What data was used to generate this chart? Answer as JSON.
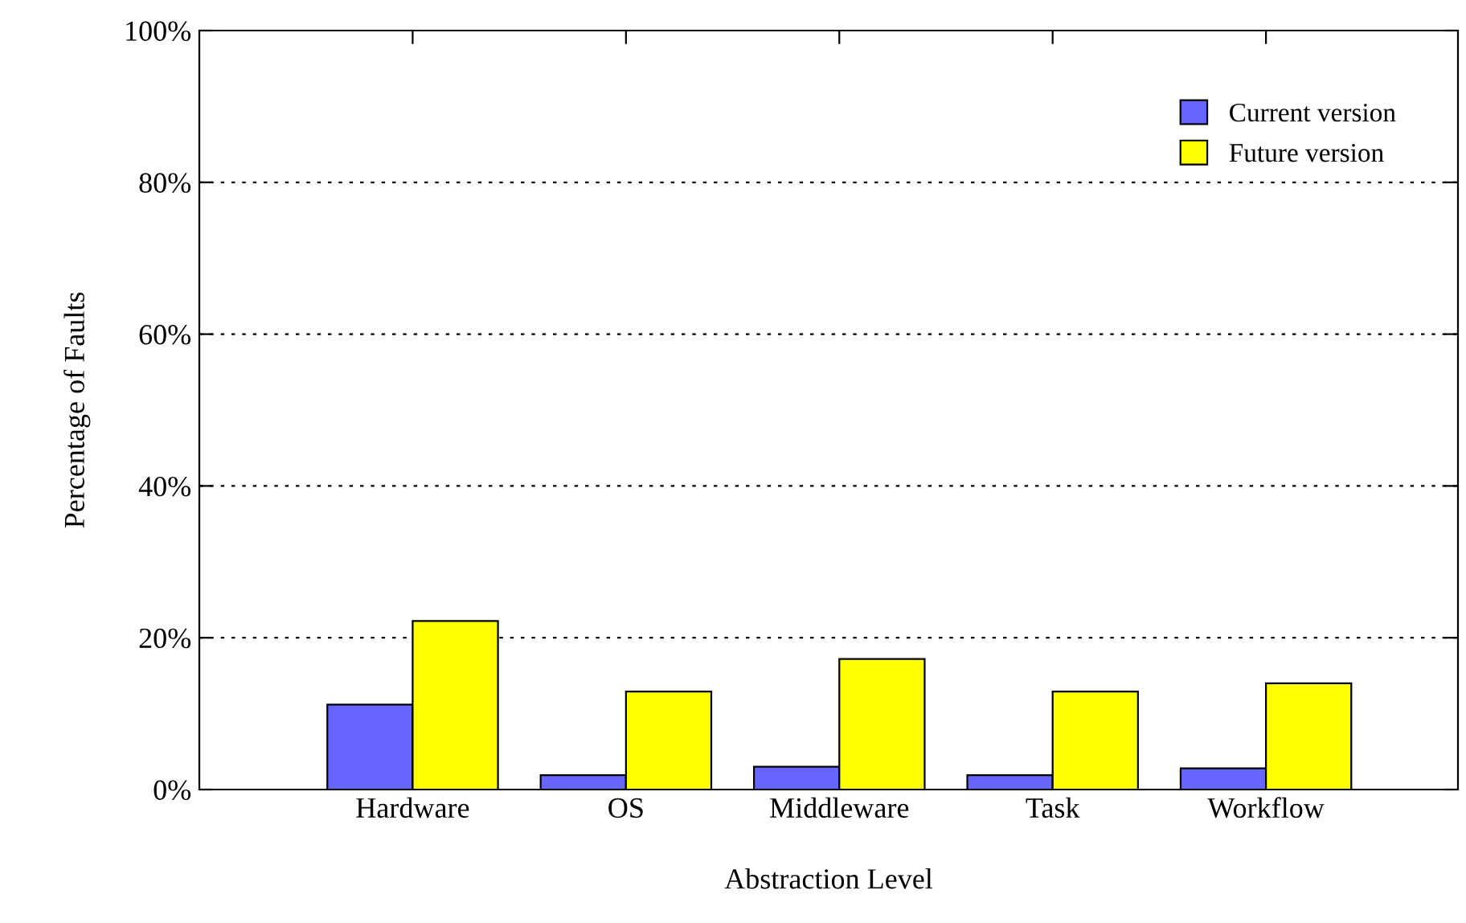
{
  "chart_data": {
    "type": "bar",
    "xlabel": "Abstraction Level",
    "ylabel": "Percentage of Faults",
    "categories": [
      "Hardware",
      "OS",
      "Middleware",
      "Task",
      "Workflow"
    ],
    "series": [
      {
        "name": "Current version",
        "color": "#6666ff",
        "values": [
          11.2,
          1.9,
          3.0,
          1.9,
          2.8
        ]
      },
      {
        "name": "Future version",
        "color": "#ffff00",
        "values": [
          22.2,
          12.9,
          17.2,
          12.9,
          14.0
        ]
      }
    ],
    "ylim": [
      0,
      100
    ],
    "yticks": [
      {
        "value": 0,
        "label": "0%"
      },
      {
        "value": 20,
        "label": "20%"
      },
      {
        "value": 40,
        "label": "40%"
      },
      {
        "value": 60,
        "label": "60%"
      },
      {
        "value": 80,
        "label": "80%"
      },
      {
        "value": 100,
        "label": "100%"
      }
    ],
    "grid": "y",
    "legend": "top right"
  }
}
